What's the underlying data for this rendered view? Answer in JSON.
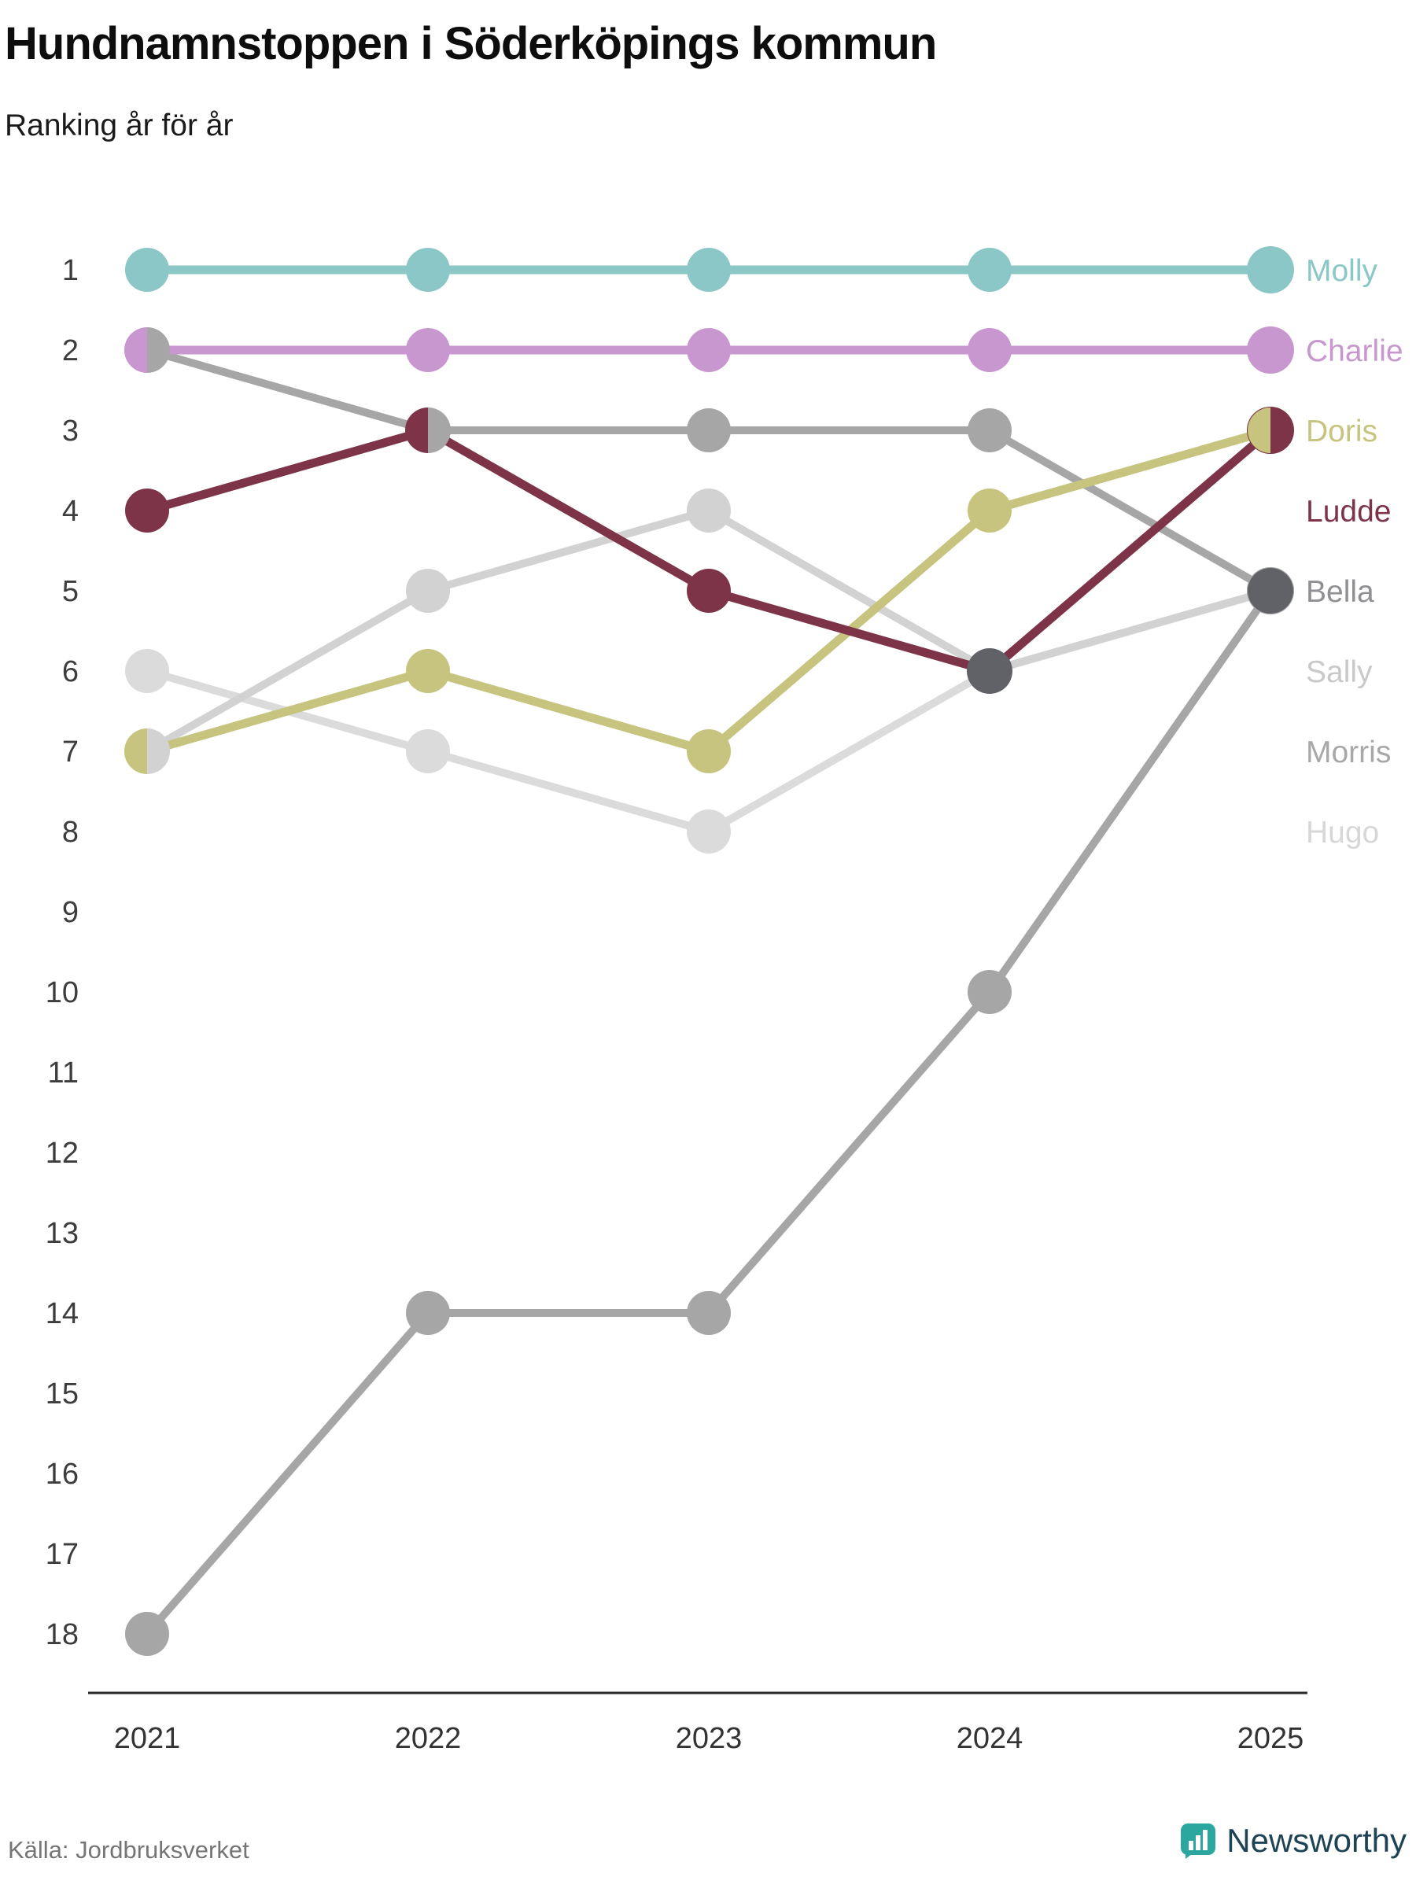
{
  "header": {
    "title": "Hundnamnstoppen i Söderköpings kommun",
    "subtitle": "Ranking år för år"
  },
  "footer": {
    "source": "Källa: Jordbruksverket",
    "brand": "Newsworthy"
  },
  "chart_data": {
    "type": "line",
    "variant": "bump-ranking",
    "x_labels": [
      "2021",
      "2022",
      "2023",
      "2024",
      "2025"
    ],
    "rank_axis": {
      "min": 1,
      "max": 18
    },
    "grid": false,
    "legend_position": "right-of-last-point",
    "series": [
      {
        "name": "Hugo",
        "color": "#dbdbdb",
        "label_color": "#d7d7d7",
        "label_slot": 8,
        "z": 1,
        "values": [
          6,
          7,
          8,
          6,
          5
        ]
      },
      {
        "name": "Sally",
        "color": "#d2d2d2",
        "label_color": "#c9c9c9",
        "label_slot": 6,
        "z": 2,
        "values": [
          7,
          5,
          4,
          6,
          5
        ]
      },
      {
        "name": "Bella",
        "color": "#a6a6a6",
        "label_color": "#8f8f94",
        "label_slot": 5,
        "z": 3,
        "values": [
          18,
          14,
          14,
          10,
          5
        ]
      },
      {
        "name": "Morris",
        "color": "#a6a6a6",
        "label_color": "#a8a8a8",
        "label_slot": 7,
        "z": 4,
        "values": [
          2,
          3,
          3,
          3,
          5
        ]
      },
      {
        "name": "Doris",
        "color": "#c6c47e",
        "label_color": "#c6c47e",
        "label_slot": 3,
        "z": 5,
        "values": [
          7,
          6,
          7,
          4,
          3
        ]
      },
      {
        "name": "Ludde",
        "color": "#7d3449",
        "label_color": "#7d3449",
        "label_slot": 4,
        "z": 6,
        "values": [
          4,
          3,
          5,
          6,
          3
        ]
      },
      {
        "name": "Charlie",
        "color": "#c997cf",
        "label_color": "#c997cf",
        "label_slot": 2,
        "z": 7,
        "values": [
          2,
          2,
          2,
          2,
          2
        ]
      },
      {
        "name": "Molly",
        "color": "#8cc7c7",
        "label_color": "#8cc7c7",
        "label_slot": 1,
        "z": 8,
        "values": [
          1,
          1,
          1,
          1,
          1
        ]
      }
    ],
    "tie_markers": [
      {
        "year_index": 0,
        "rank": 2,
        "type": "split",
        "left": "#c997cf",
        "right": "#a6a6a6",
        "note": "Charlie + Morris"
      },
      {
        "year_index": 0,
        "rank": 7,
        "type": "split",
        "left": "#c6c47e",
        "right": "#d2d2d2",
        "note": "Doris + Sally"
      },
      {
        "year_index": 1,
        "rank": 3,
        "type": "split",
        "left": "#7d3449",
        "right": "#a6a6a6",
        "note": "Ludde + Morris"
      },
      {
        "year_index": 4,
        "rank": 3,
        "type": "split",
        "left": "#c6c47e",
        "right": "#7d3449",
        "note": "Doris + Ludde"
      },
      {
        "year_index": 3,
        "rank": 6,
        "type": "solid",
        "color": "#616168",
        "note": "multi-tie"
      },
      {
        "year_index": 4,
        "rank": 5,
        "type": "solid",
        "color": "#616168",
        "note": "multi-tie"
      }
    ],
    "axis_color": "#2b2b2b",
    "rank_label_color": "#3d3d3d",
    "year_label_color": "#333333"
  }
}
